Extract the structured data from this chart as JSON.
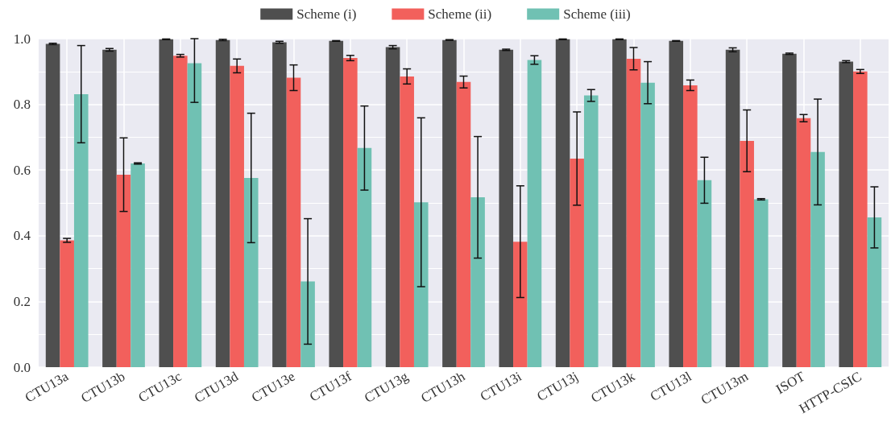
{
  "chart_data": {
    "type": "bar",
    "categories": [
      "CTU13a",
      "CTU13b",
      "CTU13c",
      "CTU13d",
      "CTU13e",
      "CTU13f",
      "CTU13g",
      "CTU13h",
      "CTU13i",
      "CTU13j",
      "CTU13k",
      "CTU13l",
      "CTU13m",
      "ISOT",
      "HTTP-CSIC"
    ],
    "series": [
      {
        "name": "Scheme (i)",
        "color": "#4f4f4f",
        "values": [
          0.984,
          0.966,
          0.998,
          0.996,
          0.989,
          0.993,
          0.974,
          0.996,
          0.966,
          0.998,
          0.998,
          0.993,
          0.966,
          0.954,
          0.93
        ],
        "errors": [
          0.002,
          0.004,
          0.001,
          0.002,
          0.003,
          0.001,
          0.005,
          0.001,
          0.002,
          0.001,
          0.001,
          0.001,
          0.006,
          0.002,
          0.003
        ]
      },
      {
        "name": "Scheme (ii)",
        "color": "#f2605c",
        "values": [
          0.386,
          0.586,
          0.948,
          0.917,
          0.881,
          0.941,
          0.885,
          0.868,
          0.382,
          0.635,
          0.939,
          0.858,
          0.689,
          0.758,
          0.9
        ],
        "errors": [
          0.006,
          0.112,
          0.004,
          0.021,
          0.039,
          0.008,
          0.023,
          0.018,
          0.17,
          0.142,
          0.034,
          0.016,
          0.094,
          0.011,
          0.006
        ]
      },
      {
        "name": "Scheme (iii)",
        "color": "#70c1b3",
        "values": [
          0.831,
          0.62,
          0.925,
          0.576,
          0.261,
          0.667,
          0.502,
          0.517,
          0.935,
          0.827,
          0.866,
          0.569,
          0.511,
          0.655,
          0.456
        ],
        "errors": [
          0.148,
          0.002,
          [
            0.806,
            1.0
          ],
          0.197,
          0.191,
          0.128,
          0.257,
          0.185,
          0.013,
          0.018,
          0.064,
          0.07,
          0.002,
          0.161,
          0.093
        ]
      }
    ],
    "ylim": [
      0,
      1
    ],
    "yticks": [
      {
        "value": 0,
        "label": "0.0"
      },
      {
        "value": 0.1,
        "label": null
      },
      0.2,
      {
        "value": 0.3,
        "label": null
      },
      0.4,
      {
        "value": 0.5,
        "label": null
      },
      0.6,
      {
        "value": 0.7,
        "label": null
      },
      0.8,
      {
        "value": 0.9,
        "label": null
      },
      {
        "value": 1,
        "label": "1.0"
      }
    ],
    "grid": true,
    "legend": "top"
  }
}
